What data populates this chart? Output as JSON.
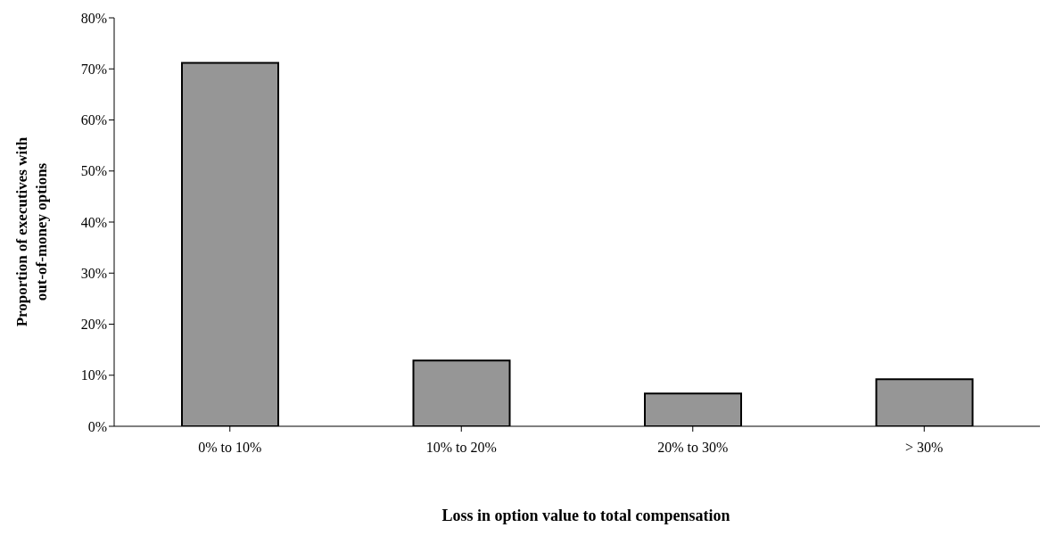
{
  "chart_data": {
    "type": "bar",
    "xlabel": "Loss in option value to total compensation",
    "ylabel": "Proportion of executives with out-of-money options",
    "categories": [
      "0% to 10%",
      "10% to 20%",
      "20% to 30%",
      "> 30%"
    ],
    "values": [
      71.2,
      12.9,
      6.4,
      9.2
    ],
    "color": "#969696",
    "ylim": [
      0,
      80
    ],
    "yticks": [
      {
        "value": 0,
        "label": "0%"
      },
      {
        "value": 10,
        "label": "10%"
      },
      {
        "value": 20,
        "label": "20%"
      },
      {
        "value": 30,
        "label": "30%"
      },
      {
        "value": 40,
        "label": "40%"
      },
      {
        "value": 50,
        "label": "50%"
      },
      {
        "value": 60,
        "label": "60%"
      },
      {
        "value": 70,
        "label": "70%"
      },
      {
        "value": 80,
        "label": "80%"
      }
    ],
    "grid": false,
    "legend": false
  }
}
